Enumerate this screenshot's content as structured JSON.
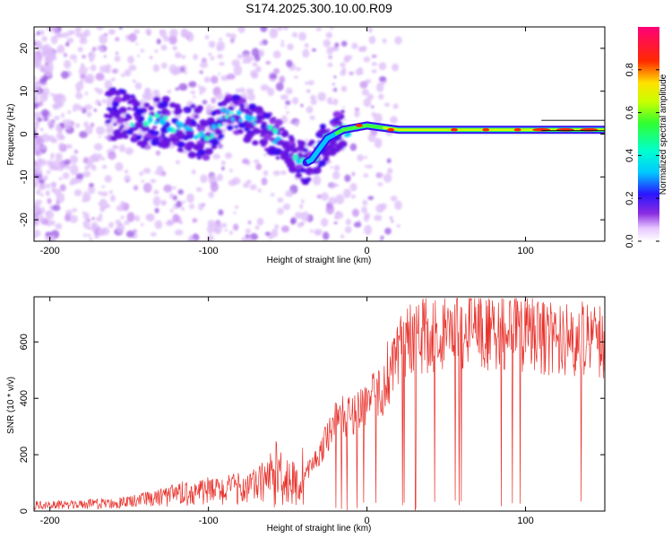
{
  "title": "S174.2025.300.10.00.R09",
  "chart_data": [
    {
      "type": "heatmap",
      "name": "spectrogram",
      "xlabel": "Height of straight line (km)",
      "ylabel": "Frequency (Hz)",
      "xlim": [
        -210,
        150
      ],
      "ylim": [
        -25,
        25
      ],
      "xticks": [
        -200,
        -100,
        0,
        100
      ],
      "yticks": [
        -20,
        -10,
        0,
        10,
        20
      ],
      "colorbar": {
        "label": "Normalized spectral amplitude",
        "range": [
          0.0,
          1.0
        ],
        "ticks": [
          "0.0",
          "0.2",
          "0.4",
          "0.6",
          "0.8"
        ],
        "tick_values": [
          0.0,
          0.2,
          0.4,
          0.6,
          0.8
        ]
      },
      "signal_track": [
        {
          "x": -160,
          "y": 5
        },
        {
          "x": -145,
          "y": 3
        },
        {
          "x": -130,
          "y": 3
        },
        {
          "x": -120,
          "y": 2
        },
        {
          "x": -110,
          "y": 1
        },
        {
          "x": -100,
          "y": -1
        },
        {
          "x": -90,
          "y": 5
        },
        {
          "x": -80,
          "y": 4
        },
        {
          "x": -70,
          "y": 2
        },
        {
          "x": -60,
          "y": 0
        },
        {
          "x": -50,
          "y": -3
        },
        {
          "x": -40,
          "y": -7
        },
        {
          "x": -35,
          "y": -6
        },
        {
          "x": -25,
          "y": -1
        },
        {
          "x": -15,
          "y": 1
        },
        {
          "x": 0,
          "y": 2
        },
        {
          "x": 20,
          "y": 1
        },
        {
          "x": 50,
          "y": 1
        },
        {
          "x": 100,
          "y": 1
        },
        {
          "x": 150,
          "y": 1
        }
      ]
    },
    {
      "type": "line",
      "name": "snr",
      "xlabel": "Height of straight line (km)",
      "ylabel": "SNR (10 * v/v)",
      "xlim": [
        -210,
        150
      ],
      "ylim": [
        0,
        760
      ],
      "xticks": [
        -200,
        -100,
        0,
        100
      ],
      "yticks": [
        0,
        200,
        400,
        600
      ],
      "color": "#e8322c",
      "envelope": [
        {
          "x": -210,
          "y": 20
        },
        {
          "x": -180,
          "y": 22
        },
        {
          "x": -150,
          "y": 30
        },
        {
          "x": -130,
          "y": 45
        },
        {
          "x": -110,
          "y": 65
        },
        {
          "x": -90,
          "y": 70
        },
        {
          "x": -70,
          "y": 85
        },
        {
          "x": -55,
          "y": 140
        },
        {
          "x": -45,
          "y": 90
        },
        {
          "x": -30,
          "y": 200
        },
        {
          "x": -20,
          "y": 330
        },
        {
          "x": -10,
          "y": 340
        },
        {
          "x": 0,
          "y": 390
        },
        {
          "x": 10,
          "y": 430
        },
        {
          "x": 20,
          "y": 560
        },
        {
          "x": 30,
          "y": 620
        },
        {
          "x": 50,
          "y": 630
        },
        {
          "x": 70,
          "y": 640
        },
        {
          "x": 100,
          "y": 625
        },
        {
          "x": 130,
          "y": 610
        },
        {
          "x": 150,
          "y": 600
        }
      ]
    }
  ]
}
